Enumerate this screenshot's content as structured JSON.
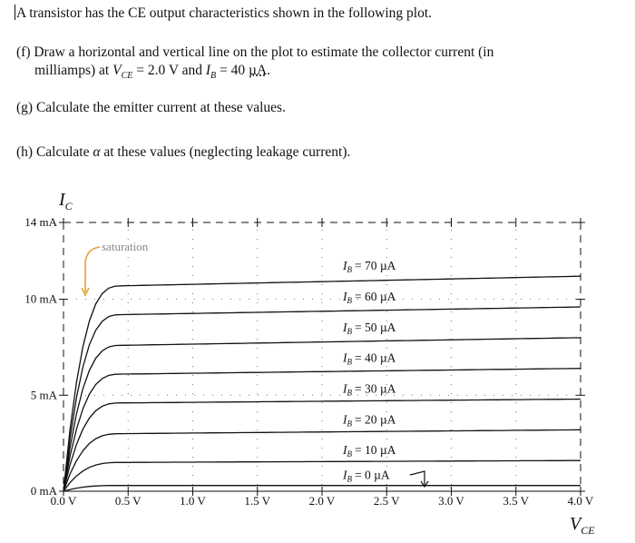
{
  "question": {
    "intro": "A transistor has the CE output characteristics shown in the following plot.",
    "part_f_line1": "(f) Draw a horizontal and vertical line on the plot to estimate the collector current (in",
    "part_f_line2_prefix": "milliamps) at ",
    "part_f_vce": "V",
    "part_f_vce_sub": "CE",
    "part_f_vce_value": " = 2.0 V and ",
    "part_f_ib": "I",
    "part_f_ib_sub": "B",
    "part_f_ib_value": " = 40 ",
    "part_f_unit": "µA",
    "part_f_end": ".",
    "part_g": "(g) Calculate the emitter current at these values.",
    "part_h_prefix": "(h) Calculate ",
    "part_h_alpha": "α",
    "part_h_suffix": " at these values (neglecting leakage current)."
  },
  "chart_data": {
    "type": "line",
    "ylabel": "I_C",
    "xlabel": "V_CE",
    "xlim": [
      0,
      4.0
    ],
    "ylim": [
      0,
      14
    ],
    "x_ticks": [
      "0.0 V",
      "0.5 V",
      "1.0 V",
      "1.5 V",
      "2.0 V",
      "2.5 V",
      "3.0 V",
      "3.5 V",
      "4.0 V"
    ],
    "x_tick_values": [
      0,
      0.5,
      1.0,
      1.5,
      2.0,
      2.5,
      3.0,
      3.5,
      4.0
    ],
    "y_ticks": [
      "0 mA",
      "5 mA",
      "10 mA",
      "14 mA"
    ],
    "y_tick_values": [
      0,
      5,
      10,
      14
    ],
    "grid": "dotted",
    "annotation": "saturation",
    "series": [
      {
        "name": "I_B = 0 µA",
        "label": "= 0 µA",
        "ib": 0,
        "ic_sat_mA": 0.3,
        "ic_end_mA": 0.3
      },
      {
        "name": "I_B = 10 µA",
        "label": "= 10 µA",
        "ib": 10,
        "ic_sat_mA": 1.5,
        "ic_end_mA": 1.6
      },
      {
        "name": "I_B = 20 µA",
        "label": "= 20 µA",
        "ib": 20,
        "ic_sat_mA": 3.0,
        "ic_end_mA": 3.2
      },
      {
        "name": "I_B = 30 µA",
        "label": "= 30 µA",
        "ib": 30,
        "ic_sat_mA": 4.6,
        "ic_end_mA": 4.8
      },
      {
        "name": "I_B = 40 µA",
        "label": "= 40 µA",
        "ib": 40,
        "ic_sat_mA": 6.1,
        "ic_end_mA": 6.4
      },
      {
        "name": "I_B = 50 µA",
        "label": "= 50 µA",
        "ib": 50,
        "ic_sat_mA": 7.6,
        "ic_end_mA": 8.0
      },
      {
        "name": "I_B = 60 µA",
        "label": "= 60 µA",
        "ib": 60,
        "ic_sat_mA": 9.2,
        "ic_end_mA": 9.6
      },
      {
        "name": "I_B = 70 µA",
        "label": "= 70 µA",
        "ib": 70,
        "ic_sat_mA": 10.7,
        "ic_end_mA": 11.2
      }
    ]
  }
}
